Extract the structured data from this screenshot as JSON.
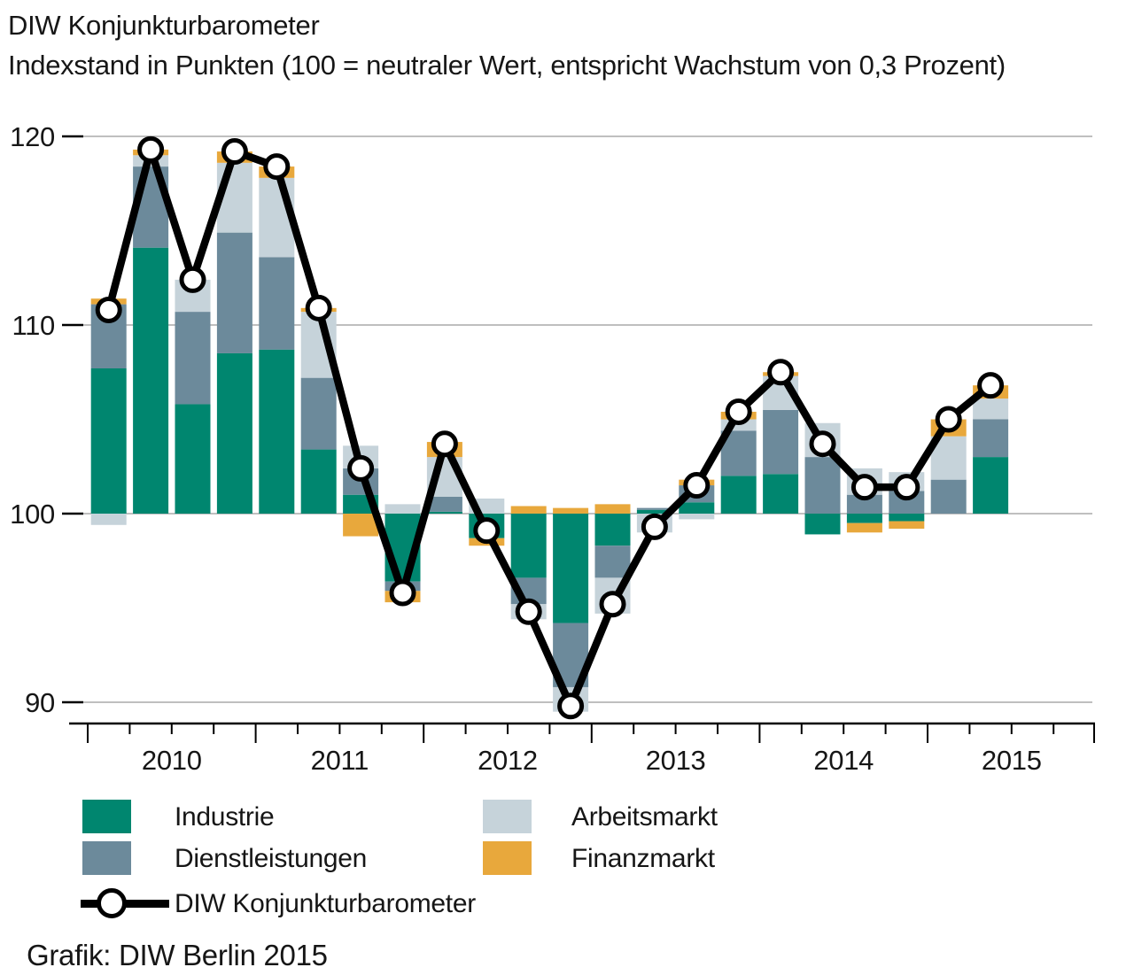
{
  "title": {
    "line1": "DIW Konjunkturbarometer",
    "line2": "Indexstand in Punkten (100 = neutraler Wert, entspricht Wachstum von 0,3 Prozent)"
  },
  "footer": {
    "credit": "Grafik: DIW Berlin 2015"
  },
  "legend": {
    "items": [
      {
        "label": "Industrie",
        "color": "#00866F",
        "type": "swatch"
      },
      {
        "label": "Dienstleistungen",
        "color": "#6C8A9B",
        "type": "swatch"
      },
      {
        "label": "Arbeitsmarkt",
        "color": "#C6D3DA",
        "type": "swatch"
      },
      {
        "label": "Finanzmarkt",
        "color": "#E8A83C",
        "type": "swatch"
      },
      {
        "label": "DIW Konjunkturbarometer",
        "color": "#000000",
        "type": "line"
      }
    ]
  },
  "colors": {
    "industrie": "#00866F",
    "dienstleistungen": "#6C8A9B",
    "arbeitsmarkt": "#C6D3DA",
    "finanzmarkt": "#E8A83C",
    "line": "#000000",
    "marker_fill": "#FFFFFF",
    "gridline": "#999999",
    "axis": "#000000",
    "text": "#161616"
  },
  "chart_data": {
    "type": "stacked_bar_with_line",
    "title": "DIW Konjunkturbarometer",
    "subtitle": "Indexstand in Punkten (100 = neutraler Wert, entspricht Wachstum von 0,3 Prozent)",
    "baseline": 100,
    "unit": "index points, contribution relative to 100",
    "yticks": [
      120,
      110,
      100,
      90
    ],
    "ylim": [
      88,
      121.5
    ],
    "grid": true,
    "legend_position": "bottom-left",
    "x_year_labels": [
      "2010",
      "2011",
      "2012",
      "2013",
      "2014",
      "2015"
    ],
    "quarters_per_year": 4,
    "categories": [
      "2010 Q1",
      "2010 Q2",
      "2010 Q3",
      "2010 Q4",
      "2011 Q1",
      "2011 Q2",
      "2011 Q3",
      "2011 Q4",
      "2012 Q1",
      "2012 Q2",
      "2012 Q3",
      "2012 Q4",
      "2013 Q1",
      "2013 Q2",
      "2013 Q3",
      "2013 Q4",
      "2014 Q1",
      "2014 Q2",
      "2014 Q3",
      "2014 Q4",
      "2015 Q1",
      "2015 Q2"
    ],
    "series": [
      {
        "name": "Industrie",
        "color": "#00866F",
        "values": [
          7.7,
          14.1,
          5.8,
          8.5,
          8.7,
          3.4,
          1.0,
          -3.6,
          0.1,
          -1.3,
          -3.4,
          -5.8,
          -1.7,
          0.2,
          0.6,
          2.0,
          2.1,
          -1.1,
          -0.5,
          -0.4,
          0.0,
          3.0
        ]
      },
      {
        "name": "Dienstleistungen",
        "color": "#6C8A9B",
        "values": [
          3.4,
          4.3,
          4.9,
          6.4,
          4.9,
          3.8,
          1.4,
          -0.5,
          0.8,
          0.0,
          -1.4,
          -3.4,
          -1.7,
          0.1,
          0.9,
          2.4,
          3.4,
          3.0,
          1.0,
          1.2,
          1.8,
          2.0
        ]
      },
      {
        "name": "Arbeitsmarkt",
        "color": "#C6D3DA",
        "values": [
          -0.6,
          0.6,
          1.7,
          3.7,
          4.2,
          3.5,
          1.2,
          0.5,
          2.1,
          0.8,
          -0.8,
          -1.3,
          -1.9,
          -1.0,
          -0.3,
          0.6,
          1.8,
          1.8,
          1.4,
          1.0,
          2.3,
          1.1
        ]
      },
      {
        "name": "Finanzmarkt",
        "color": "#E8A83C",
        "values": [
          0.3,
          0.3,
          0.0,
          0.6,
          0.6,
          0.2,
          -1.2,
          -0.6,
          0.8,
          -0.4,
          0.4,
          0.3,
          0.5,
          0.0,
          0.3,
          0.4,
          0.2,
          0.0,
          -0.5,
          -0.4,
          0.9,
          0.7
        ]
      }
    ],
    "line": {
      "name": "DIW Konjunkturbarometer",
      "color": "#000000",
      "marker_fill": "#FFFFFF",
      "values": [
        110.8,
        119.3,
        112.4,
        119.2,
        118.4,
        110.9,
        102.4,
        95.8,
        103.7,
        99.1,
        94.8,
        89.8,
        95.2,
        99.3,
        101.5,
        105.4,
        107.5,
        103.7,
        101.4,
        101.4,
        105.0,
        106.8
      ]
    }
  }
}
